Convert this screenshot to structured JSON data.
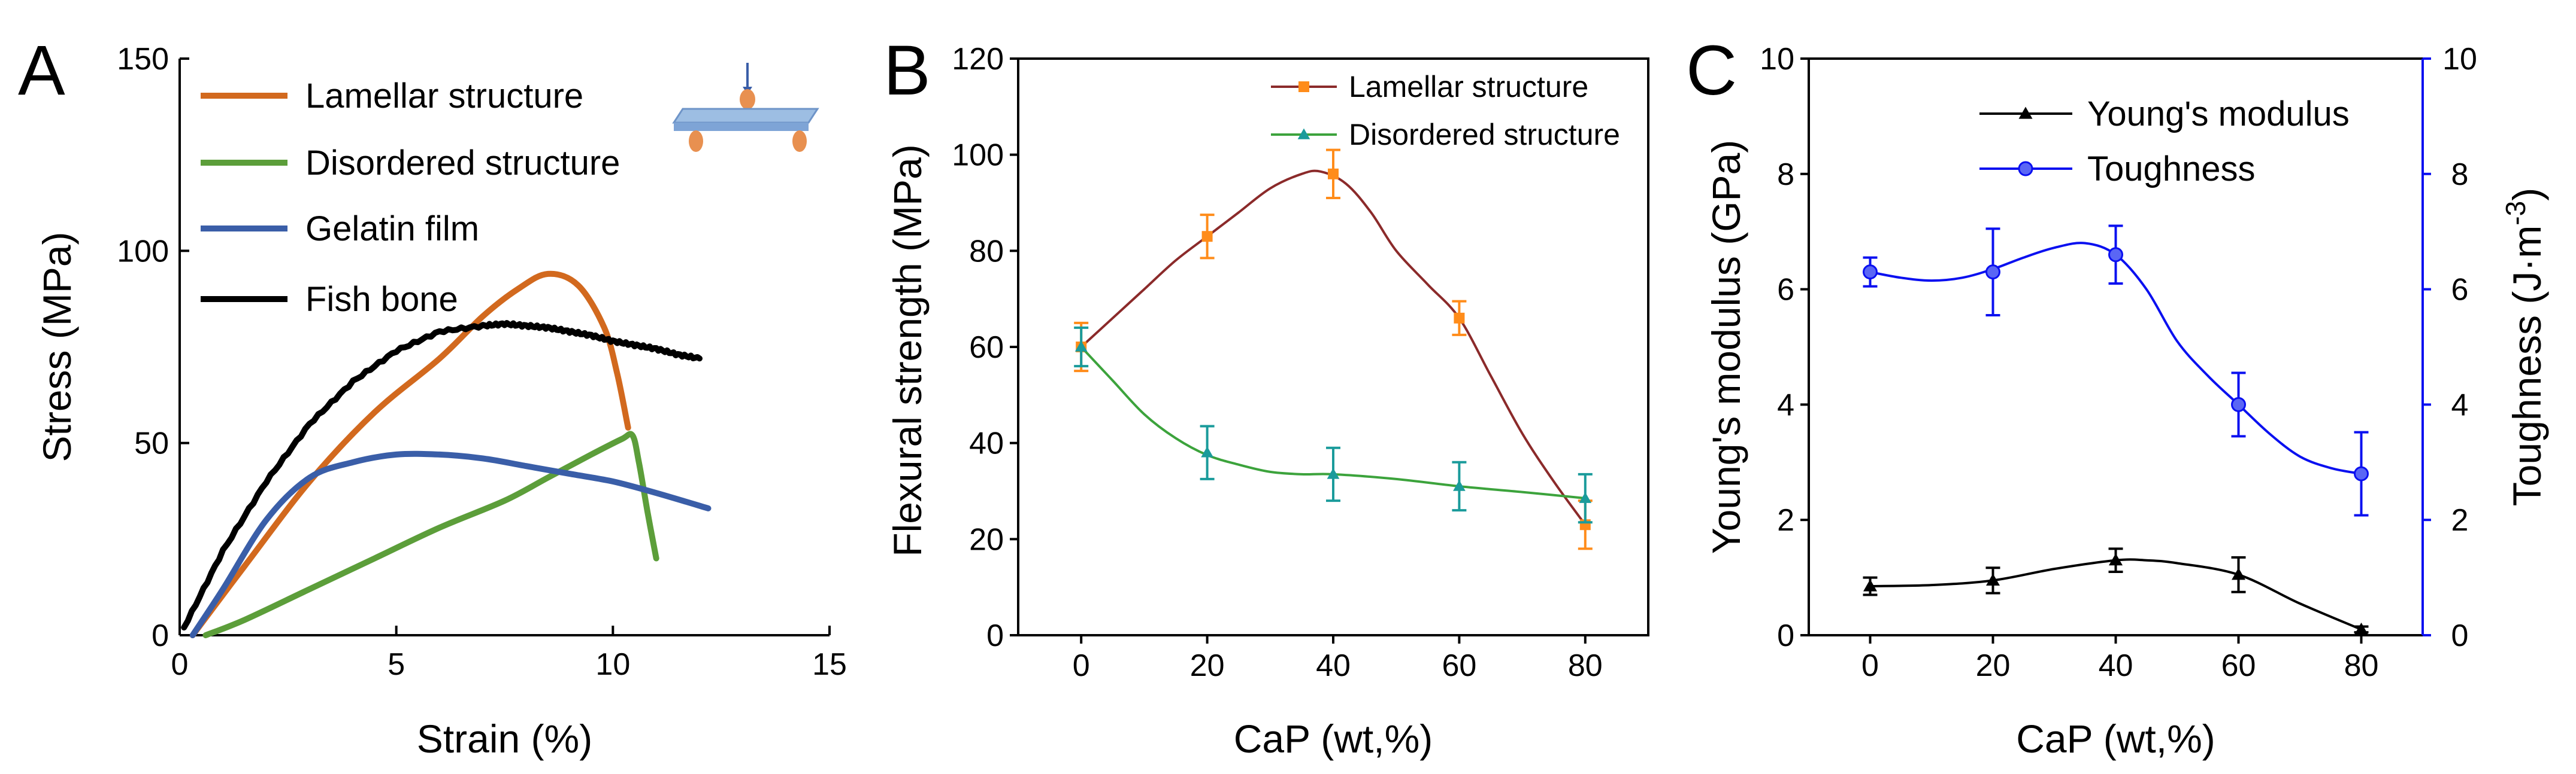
{
  "chart_data": [
    {
      "panel": "A",
      "type": "line",
      "xlabel": "Strain (%)",
      "ylabel": "Stress (MPa)",
      "xlim": [
        0,
        15
      ],
      "ylim": [
        0,
        150
      ],
      "xticks": [
        "0",
        "5",
        "10",
        "15"
      ],
      "yticks": [
        "0",
        "50",
        "100",
        "150"
      ],
      "legend_position": "top-left",
      "inset": "three-point-bending-schematic",
      "series": [
        {
          "name": "Lamellar structure",
          "color": "#D2691E",
          "x": [
            0.3,
            1.5,
            3,
            4.5,
            6,
            7,
            7.8,
            8.5,
            9.2,
            9.8,
            10.1,
            10.35
          ],
          "y": [
            0,
            18,
            40,
            58,
            72,
            83,
            90,
            94,
            91,
            80,
            68,
            54
          ]
        },
        {
          "name": "Disordered structure",
          "color": "#5C9E3A",
          "x": [
            0.6,
            1.5,
            3,
            4.5,
            6,
            7.5,
            8.5,
            9.5,
            10.2,
            10.45,
            10.6,
            10.8,
            11.0
          ],
          "y": [
            0,
            4,
            12,
            20,
            28,
            35,
            41,
            47,
            51,
            52,
            45,
            32,
            20
          ]
        },
        {
          "name": "Gelatin film",
          "color": "#3A5EA8",
          "x": [
            0.3,
            1,
            2,
            3,
            4,
            5,
            6,
            7,
            8,
            9,
            10,
            11,
            12.2
          ],
          "y": [
            0,
            12,
            30,
            41,
            45,
            47,
            47,
            46,
            44,
            42,
            40,
            37,
            33
          ]
        },
        {
          "name": "Fish bone",
          "color": "#000000",
          "x": [
            0.1,
            1,
            2,
            3,
            4,
            5,
            6,
            7,
            7.5,
            8,
            8.5,
            9,
            9.5,
            10,
            10.5,
            11,
            11.5,
            12
          ],
          "y": [
            2,
            22,
            40,
            55,
            66,
            74,
            79,
            80.5,
            81,
            80.5,
            80,
            79,
            78,
            76.5,
            75.5,
            74.5,
            73,
            72
          ]
        }
      ]
    },
    {
      "panel": "B",
      "type": "line",
      "xlabel": "CaP (wt,%)",
      "ylabel": "Flexural strength (MPa)",
      "xlim": [
        -10,
        90
      ],
      "ylim": [
        0,
        120
      ],
      "xticks": [
        "0",
        "20",
        "40",
        "60",
        "80"
      ],
      "yticks": [
        "0",
        "20",
        "40",
        "60",
        "80",
        "100",
        "120"
      ],
      "legend_position": "top-right",
      "categories": [
        0,
        20,
        40,
        60,
        80
      ],
      "series": [
        {
          "name": "Lamellar structure",
          "color": "#8B2A2A",
          "marker_color": "#FF8C1A",
          "marker": "square",
          "values": [
            60,
            83,
            96,
            66,
            23
          ],
          "errors": [
            5,
            4.5,
            5,
            3.5,
            5
          ],
          "curve_x": [
            0,
            5,
            10,
            15,
            20,
            25,
            30,
            35,
            38,
            42,
            46,
            50,
            55,
            60,
            65,
            70,
            75,
            80
          ],
          "curve_y": [
            60,
            66,
            72,
            78,
            83,
            88,
            93,
            96,
            96.5,
            94,
            88,
            80,
            73,
            66,
            54,
            42,
            32,
            23
          ]
        },
        {
          "name": "Disordered structure",
          "color": "#3CA33C",
          "marker_color": "#1A9B9B",
          "marker": "triangle",
          "values": [
            60,
            38,
            33.5,
            31,
            28.5
          ],
          "errors": [
            4,
            5.5,
            5.5,
            5,
            5
          ],
          "curve_x": [
            0,
            5,
            10,
            15,
            20,
            25,
            30,
            35,
            40,
            50,
            60,
            70,
            80
          ],
          "curve_y": [
            60,
            53,
            46,
            41,
            37.5,
            35.5,
            34,
            33.5,
            33.5,
            32.5,
            31,
            29.8,
            28.5
          ]
        }
      ]
    },
    {
      "panel": "C",
      "type": "line",
      "xlabel": "CaP (wt,%)",
      "ylabel": "Young's modulus (GPa)",
      "y2label": "Toughness (J·m",
      "y2label_sup": "-3",
      "y2label_close": ")",
      "xlim": [
        -10,
        90
      ],
      "ylim": [
        0,
        10
      ],
      "y2lim": [
        0,
        10
      ],
      "xticks": [
        "0",
        "20",
        "40",
        "60",
        "80"
      ],
      "yticks": [
        "0",
        "2",
        "4",
        "6",
        "8",
        "10"
      ],
      "y2ticks": [
        "0",
        "2",
        "4",
        "6",
        "8",
        "10"
      ],
      "legend_position": "top-right",
      "categories": [
        0,
        20,
        40,
        60,
        80
      ],
      "series": [
        {
          "name": "Young's modulus",
          "color": "#000000",
          "marker": "triangle",
          "axis": "left",
          "values": [
            0.85,
            0.95,
            1.3,
            1.05,
            0.1
          ],
          "errors": [
            0.15,
            0.22,
            0.2,
            0.3,
            0.05
          ],
          "curve_x": [
            0,
            10,
            20,
            30,
            40,
            45,
            50,
            60,
            70,
            80
          ],
          "curve_y": [
            0.85,
            0.87,
            0.95,
            1.15,
            1.3,
            1.3,
            1.25,
            1.05,
            0.55,
            0.1
          ]
        },
        {
          "name": "Toughness",
          "color": "#0A10F0",
          "marker": "circle",
          "axis": "right",
          "values": [
            6.3,
            6.3,
            6.6,
            4.0,
            2.8
          ],
          "errors": [
            0.25,
            0.75,
            0.5,
            0.55,
            0.72
          ],
          "curve_x": [
            0,
            5,
            10,
            15,
            20,
            25,
            30,
            35,
            40,
            45,
            50,
            55,
            60,
            65,
            70,
            75,
            80
          ],
          "curve_y": [
            6.3,
            6.2,
            6.15,
            6.2,
            6.35,
            6.55,
            6.72,
            6.8,
            6.6,
            6.0,
            5.1,
            4.5,
            4.0,
            3.5,
            3.1,
            2.9,
            2.8
          ]
        }
      ]
    }
  ]
}
